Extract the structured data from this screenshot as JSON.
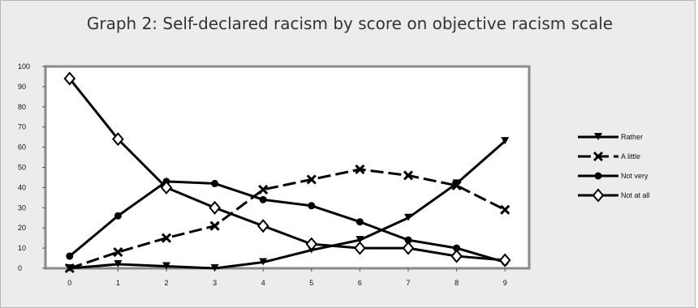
{
  "chart_data": {
    "type": "line",
    "title": "Graph 2: Self-declared racism by score on objective racism scale",
    "x": [
      0,
      1,
      2,
      3,
      4,
      5,
      6,
      7,
      8,
      9
    ],
    "ylim": [
      0,
      100
    ],
    "yticks": [
      0,
      10,
      20,
      30,
      40,
      50,
      60,
      70,
      80,
      90,
      100
    ],
    "grid": false,
    "legend_position": "right",
    "series": [
      {
        "name": "Rather",
        "marker": "triangle-down",
        "dash": "solid",
        "values": [
          0,
          2,
          1,
          0,
          3,
          9,
          14,
          25,
          42,
          63
        ]
      },
      {
        "name": "A little",
        "marker": "cross",
        "dash": "dashed",
        "values": [
          0,
          8,
          15,
          21,
          39,
          44,
          49,
          46,
          41,
          29
        ]
      },
      {
        "name": "Not very",
        "marker": "circle",
        "dash": "solid",
        "values": [
          6,
          26,
          43,
          42,
          34,
          31,
          23,
          14,
          10,
          3
        ]
      },
      {
        "name": "Not at all",
        "marker": "diamond",
        "dash": "solid",
        "values": [
          94,
          64,
          40,
          30,
          21,
          12,
          10,
          10,
          6,
          4
        ]
      }
    ]
  }
}
